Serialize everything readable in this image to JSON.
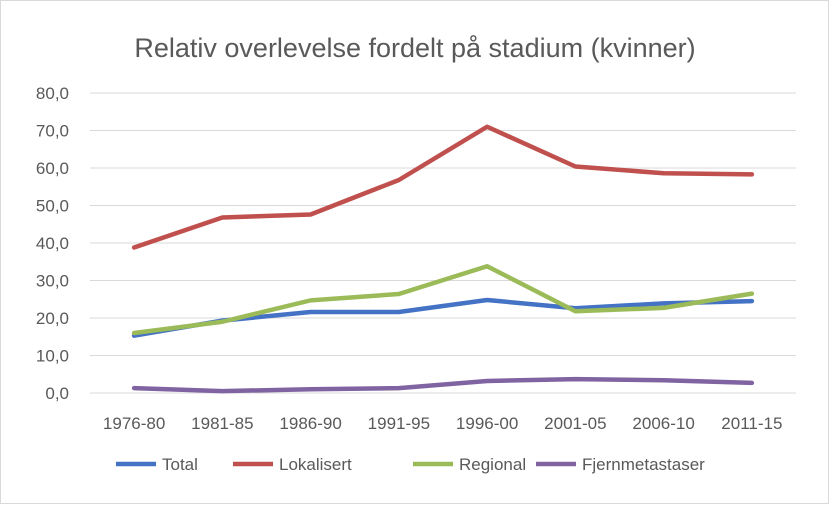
{
  "chart_data": {
    "type": "line",
    "title": "Relativ overlevelse fordelt på stadium (kvinner)",
    "xlabel": "",
    "ylabel": "",
    "categories": [
      "1976-80",
      "1981-85",
      "1986-90",
      "1991-95",
      "1996-00",
      "2001-05",
      "2006-10",
      "2011-15"
    ],
    "ylim": [
      0,
      80
    ],
    "yticks": [
      "0,0",
      "10,0",
      "20,0",
      "30,0",
      "40,0",
      "50,0",
      "60,0",
      "70,0",
      "80,0"
    ],
    "grid": true,
    "legend_position": "bottom",
    "series": [
      {
        "name": "Total",
        "color": "#4472C4",
        "values": [
          15.3,
          19.3,
          21.6,
          21.6,
          24.8,
          22.6,
          23.9,
          24.5
        ]
      },
      {
        "name": "Lokalisert",
        "color": "#C0504D",
        "values": [
          38.8,
          46.8,
          47.6,
          56.8,
          71.0,
          60.4,
          58.6,
          58.3
        ]
      },
      {
        "name": "Regional",
        "color": "#9BBB59",
        "values": [
          16.0,
          19.0,
          24.7,
          26.4,
          33.8,
          21.8,
          22.7,
          26.5
        ]
      },
      {
        "name": "Fjernmetastaser",
        "color": "#8064A2",
        "values": [
          1.3,
          0.5,
          1.0,
          1.3,
          3.2,
          3.7,
          3.4,
          2.7
        ]
      }
    ]
  }
}
